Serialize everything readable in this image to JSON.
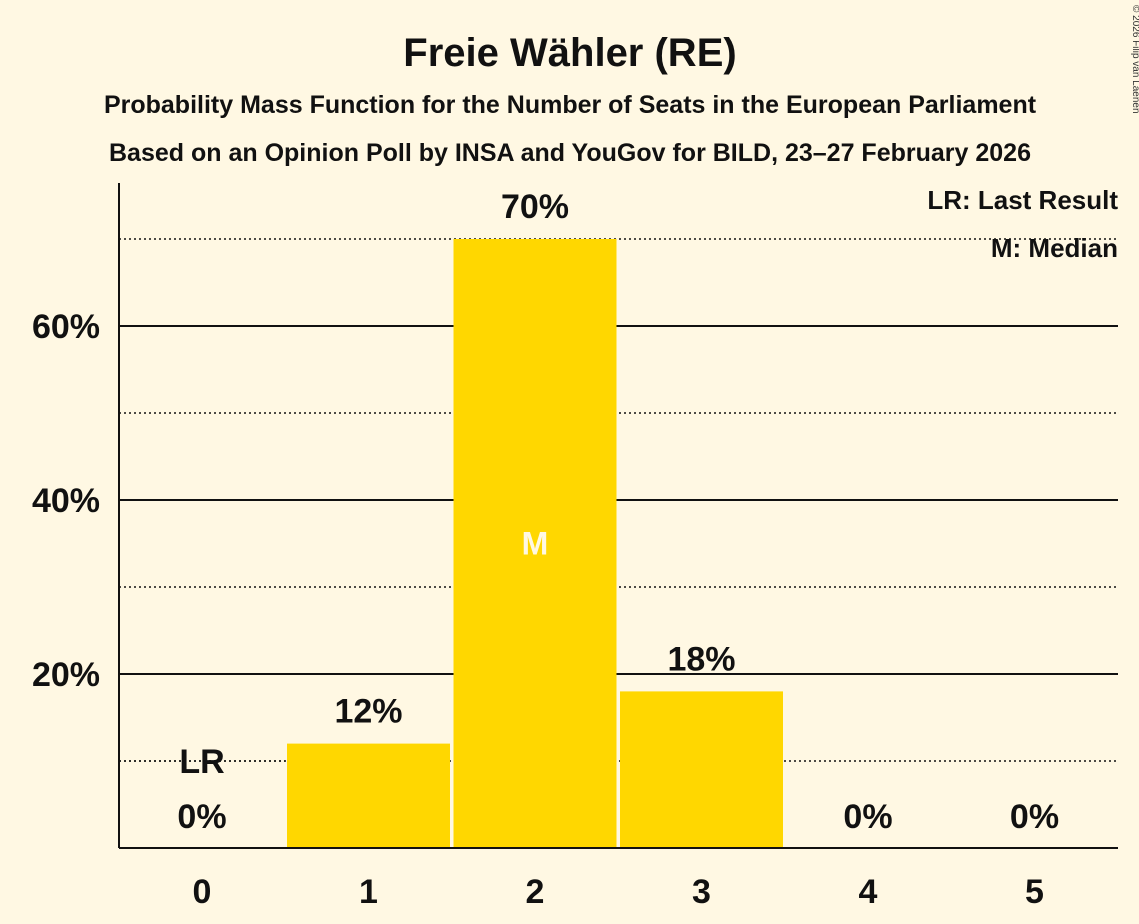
{
  "chart_data": {
    "type": "bar",
    "title": "Freie Wähler (RE)",
    "subtitle": "Probability Mass Function for the Number of Seats in the European Parliament",
    "source": "Based on an Opinion Poll by INSA and YouGov for BILD, 23–27 February 2026",
    "copyright": "© 2026 Filip van Laenen",
    "categories": [
      "0",
      "1",
      "2",
      "3",
      "4",
      "5"
    ],
    "values": [
      0,
      12,
      70,
      18,
      0,
      0
    ],
    "value_labels": [
      "0%",
      "12%",
      "70%",
      "18%",
      "0%",
      "0%"
    ],
    "ylim": [
      0,
      76
    ],
    "yticks": [
      20,
      40,
      60
    ],
    "ytick_labels": [
      "20%",
      "40%",
      "60%"
    ],
    "minor_gridlines": [
      10,
      30,
      50,
      70
    ],
    "last_result": {
      "category_index": 0,
      "value": 10,
      "label": "LR"
    },
    "median": {
      "category_index": 2,
      "label": "M"
    },
    "legend": [
      "LR: Last Result",
      "M: Median"
    ],
    "legend_position": "top-right",
    "colors": {
      "bar": "#ffd700",
      "background": "#fff8e3",
      "text": "#111111"
    }
  }
}
